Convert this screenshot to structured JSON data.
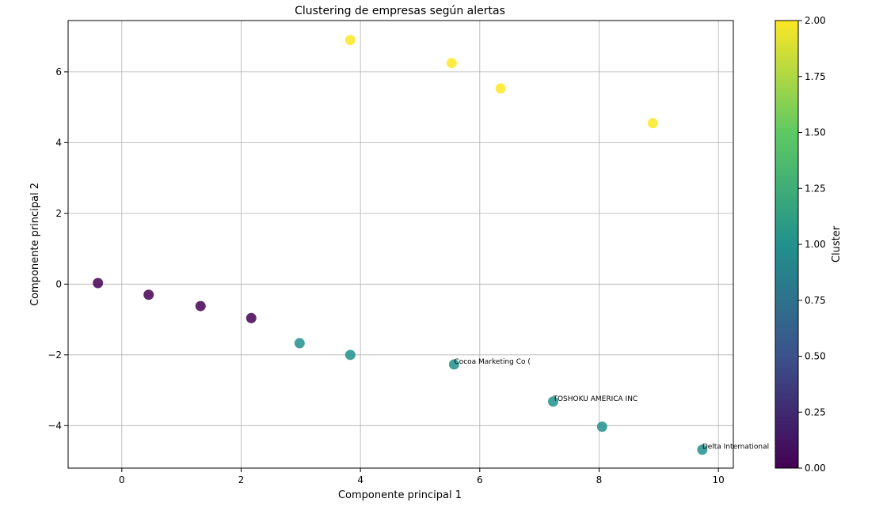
{
  "chart_data": {
    "type": "scatter",
    "title": "Clustering de empresas según alertas",
    "xlabel": "Componente principal 1",
    "ylabel": "Componente principal 2",
    "xlim": [
      -0.9,
      10.25
    ],
    "ylim": [
      -5.2,
      7.45
    ],
    "xticks": [
      0,
      2,
      4,
      6,
      8,
      10
    ],
    "yticks": [
      -4,
      -2,
      0,
      2,
      4,
      6
    ],
    "grid": true,
    "points": [
      {
        "x": -0.4,
        "y": 0.03,
        "cluster": 0
      },
      {
        "x": 0.45,
        "y": -0.3,
        "cluster": 0
      },
      {
        "x": 1.32,
        "y": -0.62,
        "cluster": 0
      },
      {
        "x": 2.17,
        "y": -0.96,
        "cluster": 0
      },
      {
        "x": 2.98,
        "y": -1.67,
        "cluster": 1
      },
      {
        "x": 3.83,
        "y": -2.0,
        "cluster": 1
      },
      {
        "x": 5.57,
        "y": -2.27,
        "cluster": 1,
        "label": "Cocoa Marketing Co ("
      },
      {
        "x": 7.23,
        "y": -3.32,
        "cluster": 1,
        "label": "TOSHOKU AMERICA INC"
      },
      {
        "x": 8.05,
        "y": -4.03,
        "cluster": 1
      },
      {
        "x": 9.73,
        "y": -4.68,
        "cluster": 1,
        "label": "Delta International"
      },
      {
        "x": 3.83,
        "y": 6.9,
        "cluster": 2
      },
      {
        "x": 5.53,
        "y": 6.25,
        "cluster": 2
      },
      {
        "x": 6.35,
        "y": 5.53,
        "cluster": 2
      },
      {
        "x": 8.9,
        "y": 4.55,
        "cluster": 2
      }
    ],
    "colorbar": {
      "label": "Cluster",
      "range": [
        0,
        2
      ],
      "ticks": [
        "0.00",
        "0.25",
        "0.50",
        "0.75",
        "1.00",
        "1.25",
        "1.50",
        "1.75",
        "2.00"
      ],
      "colormap": [
        "#440154",
        "#3b528b",
        "#21918c",
        "#5ec962",
        "#fde725"
      ]
    }
  }
}
